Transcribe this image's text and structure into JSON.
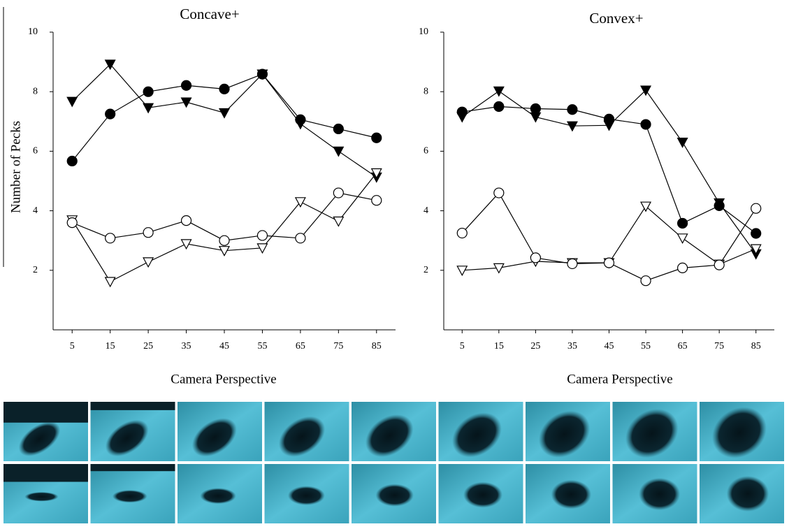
{
  "chart_data": [
    {
      "type": "line",
      "title": "Concave+",
      "xlabel": "Camera Perspective",
      "ylabel": "Number of Pecks",
      "x": [
        5,
        15,
        25,
        35,
        45,
        55,
        65,
        75,
        85
      ],
      "xlim": [
        0,
        90
      ],
      "xticks": [
        5,
        15,
        25,
        35,
        45,
        55,
        65,
        75,
        85
      ],
      "ylim": [
        0,
        10
      ],
      "yticks": [
        2,
        4,
        6,
        8,
        10
      ],
      "grid": false,
      "series": [
        {
          "color": "#000000",
          "marker": "triangle-down",
          "filled": true,
          "values": [
            7.67,
            8.92,
            7.46,
            7.65,
            7.29,
            8.59,
            6.92,
            6.0,
            5.13
          ]
        },
        {
          "color": "#000000",
          "marker": "circle",
          "filled": true,
          "values": [
            5.67,
            7.25,
            8.0,
            8.21,
            8.09,
            8.59,
            7.06,
            6.75,
            6.45
          ]
        },
        {
          "color": "#000000",
          "marker": "triangle-down",
          "filled": false,
          "values": [
            3.69,
            1.62,
            2.28,
            2.89,
            2.66,
            2.75,
            4.3,
            3.65,
            5.27
          ]
        },
        {
          "color": "#000000",
          "marker": "circle",
          "filled": false,
          "values": [
            3.6,
            3.08,
            3.27,
            3.67,
            3.0,
            3.17,
            3.08,
            4.6,
            4.35
          ]
        }
      ]
    },
    {
      "type": "line",
      "title": "Convex+",
      "xlabel": "Camera Perspective",
      "x": [
        5,
        15,
        25,
        35,
        45,
        55,
        65,
        75,
        85
      ],
      "xlim": [
        0,
        90
      ],
      "xticks": [
        5,
        15,
        25,
        35,
        45,
        55,
        65,
        75,
        85
      ],
      "ylim": [
        0,
        10
      ],
      "yticks": [
        2,
        4,
        6,
        8,
        10
      ],
      "grid": false,
      "series": [
        {
          "color": "#000000",
          "marker": "triangle-down",
          "filled": true,
          "values": [
            7.15,
            8.02,
            7.15,
            6.85,
            6.87,
            8.05,
            6.3,
            4.26,
            2.55
          ]
        },
        {
          "color": "#000000",
          "marker": "circle",
          "filled": true,
          "values": [
            7.32,
            7.5,
            7.43,
            7.4,
            7.08,
            6.9,
            3.58,
            4.17,
            3.24
          ]
        },
        {
          "color": "#000000",
          "marker": "triangle-down",
          "filled": false,
          "values": [
            2.0,
            2.08,
            2.3,
            2.25,
            2.25,
            4.15,
            3.08,
            2.2,
            2.72
          ]
        },
        {
          "color": "#000000",
          "marker": "circle",
          "filled": false,
          "values": [
            3.25,
            4.6,
            2.42,
            2.22,
            2.25,
            1.65,
            2.08,
            2.18,
            4.08
          ]
        }
      ]
    }
  ]
}
